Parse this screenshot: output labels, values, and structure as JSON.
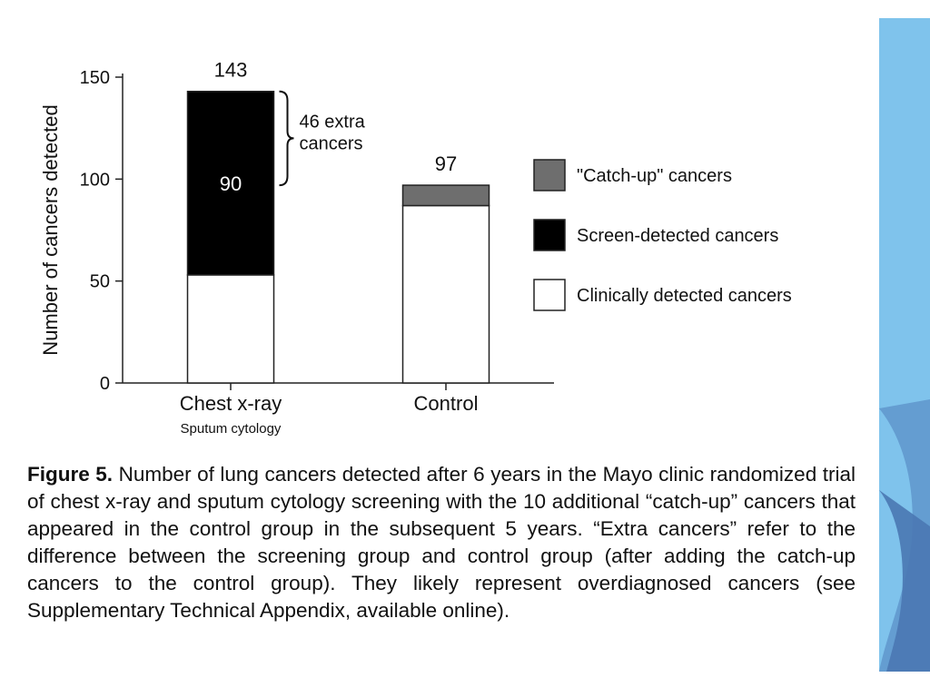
{
  "chart_data": {
    "type": "bar",
    "stacked": true,
    "categories": [
      "Chest x-ray",
      "Control"
    ],
    "category_sublabels": [
      "Sputum cytology",
      ""
    ],
    "ylabel": "Number of cancers detected",
    "ylim": [
      0,
      150
    ],
    "yticks": [
      0,
      50,
      100,
      150
    ],
    "series": [
      {
        "name": "Clinically detected cancers",
        "color": "#ffffff",
        "values": [
          53,
          87
        ]
      },
      {
        "name": "Screen-detected cancers",
        "color": "#000000",
        "values": [
          90,
          0
        ]
      },
      {
        "name": "\"Catch-up\" cancers",
        "color": "#6e6e6e",
        "values": [
          0,
          10
        ]
      }
    ],
    "totals": [
      "143",
      "97"
    ],
    "inbar_label": "90",
    "annotation": [
      "46 extra",
      "cancers"
    ],
    "legend_order": [
      2,
      1,
      0
    ],
    "legend_position": "right",
    "grid": false
  },
  "caption": {
    "label": "Figure 5.",
    "text": " Number of lung cancers detected after 6 years in the Mayo clinic randomized trial of chest x-ray and sputum cytology screening with the 10 additional “catch-up” cancers that appeared in the control group in the subsequent 5 years. “Extra cancers” refer to the difference between the screening group and control group (after adding the catch-up cancers to the control group). They likely represent overdiagnosed cancers (see Supplementary Technical Appendix, available online)."
  },
  "colors": {
    "decor_band": "#7fc3ec",
    "decor_band_dark": "#4a78b2"
  }
}
